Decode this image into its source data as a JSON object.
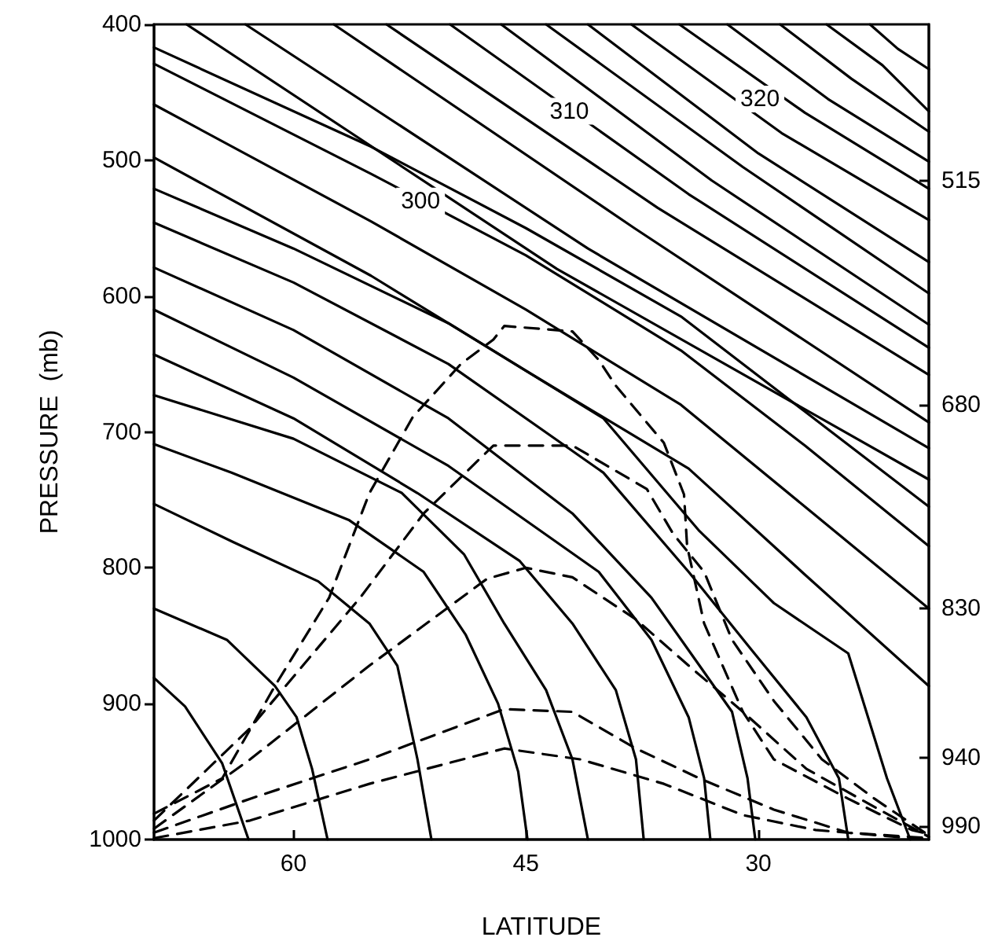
{
  "chart_data": {
    "type": "line",
    "xlabel": "LATITUDE",
    "ylabel": "PRESSURE  (mb)",
    "xlim": [
      69,
      19
    ],
    "xticks": [
      60,
      45,
      30
    ],
    "ylim": [
      1000,
      400
    ],
    "yticks": [
      400,
      500,
      600,
      700,
      800,
      900,
      1000
    ],
    "y2lim": [
      1000,
      400
    ],
    "y2ticks": [
      515,
      680,
      830,
      940,
      990
    ],
    "grid": false,
    "marker": "none",
    "annotations": [
      {
        "text": "300",
        "x": 51.8,
        "y": 530
      },
      {
        "text": "310",
        "x": 42.2,
        "y": 464
      },
      {
        "text": "320",
        "x": 29.9,
        "y": 455
      }
    ],
    "series": [
      {
        "color": "#000000",
        "line_style": "solid",
        "x": [
          69,
          67,
          64.6,
          62.9
        ],
        "values": [
          881,
          902,
          944,
          1000
        ]
      },
      {
        "color": "#000000",
        "line_style": "solid",
        "x": [
          69,
          64.3,
          61.2,
          59.8,
          58.8,
          57.8
        ],
        "values": [
          830,
          853,
          887,
          910,
          948,
          1000
        ]
      },
      {
        "color": "#000000",
        "line_style": "solid",
        "x": [
          69,
          63.9,
          58.4,
          55.1,
          53.3,
          52.0,
          51.1
        ],
        "values": [
          753,
          781,
          810,
          841,
          872,
          941,
          1000
        ]
      },
      {
        "color": "#000000",
        "line_style": "solid",
        "x": [
          69,
          64,
          56.4,
          51.6,
          48.9,
          46.8,
          45.5,
          44.9
        ],
        "values": [
          709,
          730,
          765,
          803,
          849,
          900,
          950,
          1000
        ]
      },
      {
        "color": "#000000",
        "line_style": "solid",
        "x": [
          69,
          60,
          53,
          49,
          46.4,
          43.7,
          42,
          41
        ],
        "values": [
          673,
          705,
          745,
          790,
          841,
          890,
          941,
          1000
        ]
      },
      {
        "color": "#000000",
        "line_style": "solid",
        "x": [
          69,
          60,
          52,
          45.4,
          42,
          39.2,
          37.9,
          37.4
        ],
        "values": [
          643,
          690,
          745,
          795,
          841,
          890,
          941,
          1000
        ]
      },
      {
        "color": "#000000",
        "line_style": "solid",
        "x": [
          69,
          60,
          50,
          40.3,
          36.9,
          34.5,
          33.5,
          33.1
        ],
        "values": [
          610,
          660,
          725,
          803,
          853,
          910,
          955,
          1000
        ]
      },
      {
        "color": "#000000",
        "line_style": "solid",
        "x": [
          69,
          60,
          50,
          42,
          36.9,
          33.8,
          31.7,
          30.7,
          30.2
        ],
        "values": [
          579,
          625,
          690,
          760,
          822,
          872,
          906,
          955,
          1000
        ]
      },
      {
        "color": "#000000",
        "line_style": "solid",
        "x": [
          69,
          60,
          50,
          40,
          34.5,
          30.4,
          26.9,
          24.8,
          24.2
        ],
        "values": [
          546,
          590,
          650,
          730,
          803,
          861,
          910,
          955,
          1000
        ]
      },
      {
        "color": "#000000",
        "line_style": "solid",
        "x": [
          69,
          60,
          50,
          40,
          33.8,
          29,
          24.2,
          21.7,
          20.2
        ],
        "values": [
          521,
          565,
          620,
          690,
          773,
          826,
          863,
          955,
          1000
        ]
      },
      {
        "color": "#000000",
        "line_style": "solid",
        "x": [
          69,
          55,
          45,
          34.5,
          27,
          19
        ],
        "values": [
          498,
          585,
          655,
          727,
          805,
          887
        ]
      },
      {
        "color": "#000000",
        "line_style": "solid",
        "x": [
          69,
          55,
          45,
          35,
          27,
          19
        ],
        "values": [
          459,
          545,
          610,
          680,
          755,
          830
        ]
      },
      {
        "color": "#000000",
        "line_style": "solid",
        "x": [
          69,
          55,
          45,
          35,
          27,
          19
        ],
        "values": [
          429,
          510,
          570,
          640,
          710,
          784
        ]
      },
      {
        "color": "#000000",
        "line_style": "solid",
        "x": [
          69,
          55,
          45,
          35,
          27,
          19
        ],
        "values": [
          417,
          490,
          550,
          615,
          685,
          755
        ]
      },
      {
        "color": "#000000",
        "line_style": "solid",
        "x": [
          66.9,
          43,
          19
        ],
        "values": [
          400,
          580,
          735
        ]
      },
      {
        "color": "#000000",
        "line_style": "solid",
        "x": [
          63.1,
          41,
          19
        ],
        "values": [
          400,
          565,
          712
        ]
      },
      {
        "color": "#000000",
        "line_style": "solid",
        "x": [
          57.4,
          38,
          19
        ],
        "values": [
          400,
          550,
          693
        ]
      },
      {
        "color": "#000000",
        "line_style": "solid",
        "x": [
          54.0,
          36.5,
          19
        ],
        "values": [
          400,
          535,
          658
        ]
      },
      {
        "color": "#000000",
        "line_style": "solid",
        "x": [
          49.9,
          34.5,
          19
        ],
        "values": [
          400,
          525,
          638
        ]
      },
      {
        "color": "#000000",
        "line_style": "solid",
        "x": [
          46.6,
          33,
          19
        ],
        "values": [
          400,
          515,
          621
        ]
      },
      {
        "color": "#000000",
        "line_style": "solid",
        "x": [
          43.7,
          31,
          19
        ],
        "values": [
          400,
          505,
          598
        ]
      },
      {
        "color": "#000000",
        "line_style": "solid",
        "x": [
          41.0,
          30,
          19
        ],
        "values": [
          400,
          495,
          575
        ]
      },
      {
        "color": "#000000",
        "line_style": "solid",
        "x": [
          38.2,
          28.5,
          19
        ],
        "values": [
          400,
          480,
          544
        ]
      },
      {
        "color": "#000000",
        "line_style": "solid",
        "x": [
          35.1,
          27,
          19
        ],
        "values": [
          400,
          465,
          521
        ]
      },
      {
        "color": "#000000",
        "line_style": "solid",
        "x": [
          32.0,
          25.5,
          19
        ],
        "values": [
          400,
          455,
          501
        ]
      },
      {
        "color": "#000000",
        "line_style": "solid",
        "x": [
          28.6,
          24,
          19
        ],
        "values": [
          400,
          440,
          479
        ]
      },
      {
        "color": "#000000",
        "line_style": "solid",
        "x": [
          25.6,
          22,
          19
        ],
        "values": [
          400,
          430,
          464
        ]
      },
      {
        "color": "#000000",
        "line_style": "solid",
        "x": [
          22.8,
          21,
          19
        ],
        "values": [
          400,
          418,
          433
        ]
      },
      {
        "color": "#000000",
        "line_style": "dashed",
        "x": [
          69,
          64.6,
          61.2,
          57.7,
          55.1,
          52.3,
          49.2,
          47.1,
          46.4,
          42,
          40.3,
          39.2,
          36.1,
          34.8,
          34.6,
          33.5,
          31,
          29,
          24.2,
          20.1,
          19
        ],
        "values": [
          981,
          955,
          887,
          822,
          745,
          689,
          650,
          632,
          622,
          626,
          647,
          666,
          708,
          746,
          784,
          841,
          906,
          941,
          970,
          993,
          996
        ]
      },
      {
        "color": "#000000",
        "line_style": "dashed",
        "x": [
          69,
          62.8,
          55.7,
          51.6,
          47.1,
          42,
          37.2,
          35.5,
          33.5,
          31.7,
          29,
          25.9,
          22.5,
          19
        ],
        "values": [
          986,
          918,
          822,
          760,
          710,
          710,
          742,
          775,
          803,
          853,
          898,
          941,
          970,
          997
        ]
      },
      {
        "color": "#000000",
        "line_style": "dashed",
        "x": [
          69,
          62.8,
          55.1,
          47.5,
          45,
          42,
          37.9,
          34.5,
          31,
          26.9,
          22.2,
          19
        ],
        "values": [
          992,
          941,
          872,
          808,
          800,
          807,
          838,
          872,
          906,
          948,
          978,
          998
        ]
      },
      {
        "color": "#000000",
        "line_style": "dashed",
        "x": [
          69,
          62.8,
          55.1,
          46.4,
          42,
          37.9,
          33.8,
          29,
          24.2,
          19
        ],
        "values": [
          995,
          970,
          941,
          904,
          906,
          933,
          955,
          978,
          995,
          999
        ]
      },
      {
        "color": "#000000",
        "line_style": "dashed",
        "x": [
          69,
          62.8,
          55.1,
          46.4,
          41.5,
          36.1,
          31,
          26.3,
          19
        ],
        "values": [
          999,
          986,
          959,
          933,
          941,
          959,
          982,
          993,
          1000
        ]
      }
    ]
  }
}
